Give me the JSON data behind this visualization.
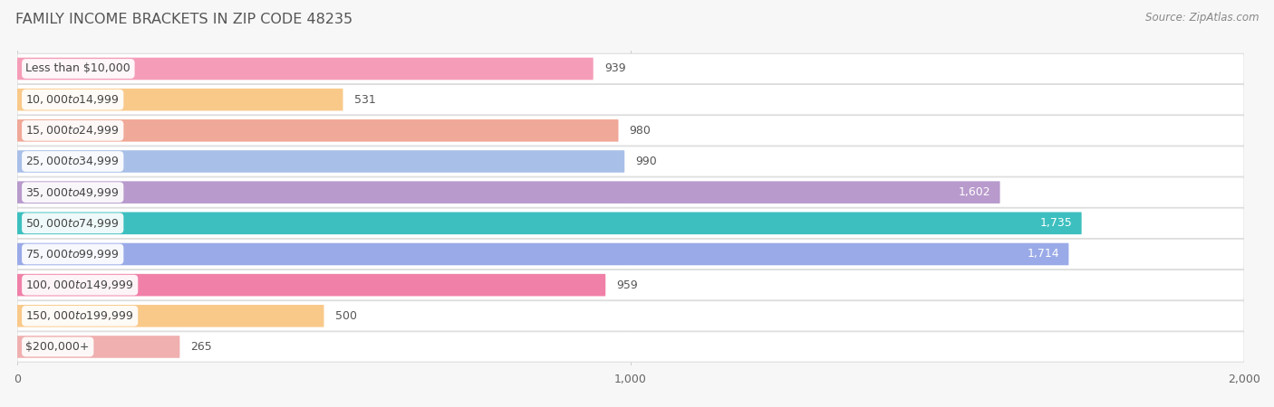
{
  "title": "FAMILY INCOME BRACKETS IN ZIP CODE 48235",
  "source": "Source: ZipAtlas.com",
  "categories": [
    "Less than $10,000",
    "$10,000 to $14,999",
    "$15,000 to $24,999",
    "$25,000 to $34,999",
    "$35,000 to $49,999",
    "$50,000 to $74,999",
    "$75,000 to $99,999",
    "$100,000 to $149,999",
    "$150,000 to $199,999",
    "$200,000+"
  ],
  "values": [
    939,
    531,
    980,
    990,
    1602,
    1735,
    1714,
    959,
    500,
    265
  ],
  "bar_colors": [
    "#f59db8",
    "#f9c98a",
    "#f0a898",
    "#a8bfe8",
    "#b89acc",
    "#3dbfbf",
    "#9aaae8",
    "#f080a8",
    "#f9c98a",
    "#f0b0b0"
  ],
  "xlim": [
    0,
    2000
  ],
  "xticks": [
    0,
    1000,
    2000
  ],
  "background_color": "#f7f7f7",
  "row_bg_color": "#eeeeee",
  "title_fontsize": 11.5,
  "source_fontsize": 8.5,
  "label_fontsize": 9,
  "value_fontsize": 9,
  "bar_height": 0.72,
  "inside_label_threshold": 1400
}
